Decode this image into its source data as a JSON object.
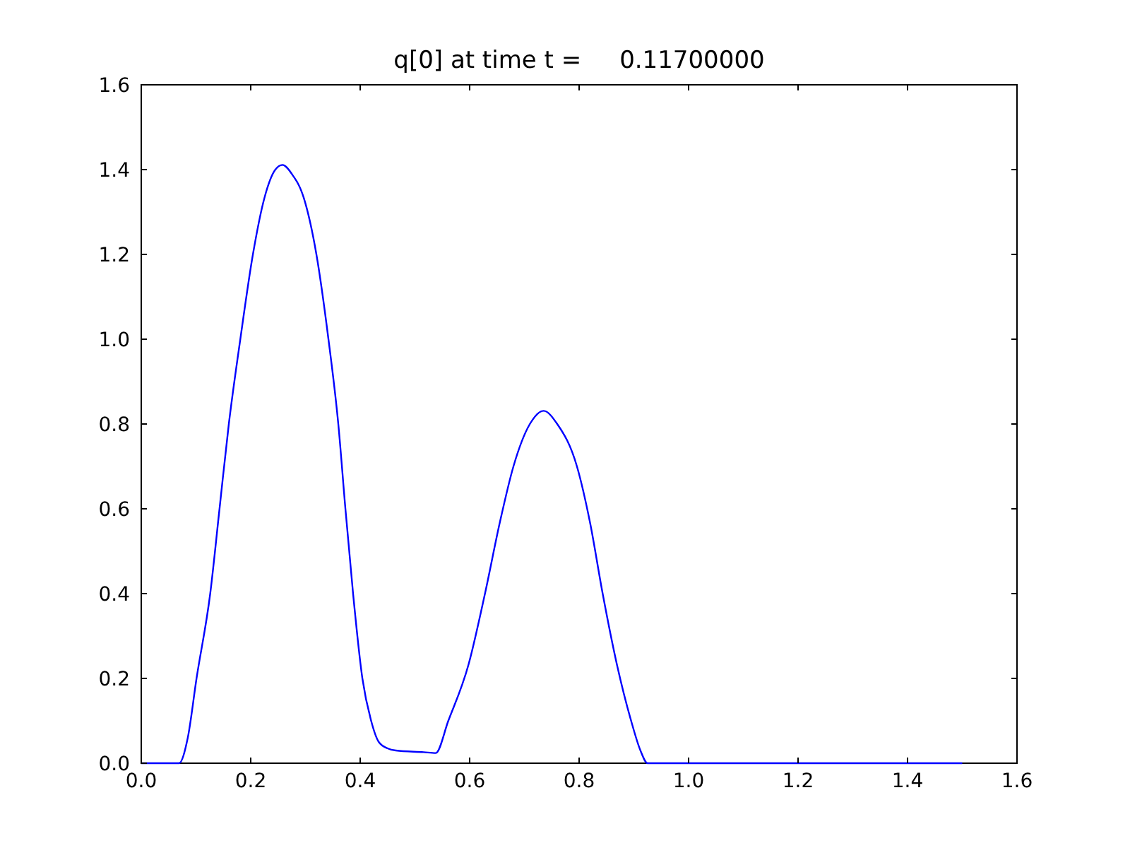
{
  "chart_data": {
    "type": "line",
    "title": "q[0] at time t =     0.11700000",
    "series": [
      {
        "color": "#0000ff",
        "x": [
          0,
          0.069,
          0.085,
          0.101,
          0.126,
          0.143,
          0.16,
          0.181,
          0.204,
          0.225,
          0.245,
          0.258,
          0.275,
          0.297,
          0.32,
          0.342,
          0.36,
          0.373,
          0.387,
          0.404,
          0.42,
          0.434,
          0.45,
          0.465,
          0.516,
          0.538,
          0.561,
          0.598,
          0.628,
          0.655,
          0.68,
          0.71,
          0.735,
          0.76,
          0.796,
          0.82,
          0.843,
          0.869,
          0.895,
          0.912,
          0.925,
          1.5
        ],
        "values": [
          0,
          0,
          0.06,
          0.2,
          0.4,
          0.6,
          0.8,
          1.0,
          1.2,
          1.333,
          1.4,
          1.411,
          1.39,
          1.333,
          1.2,
          1.0,
          0.8,
          0.6,
          0.4,
          0.2,
          0.1,
          0.05,
          0.035,
          0.03,
          0.026,
          0.024,
          0.1,
          0.233,
          0.4,
          0.567,
          0.7,
          0.8,
          0.831,
          0.8,
          0.7,
          0.567,
          0.4,
          0.233,
          0.1,
          0.03,
          0,
          0
        ]
      }
    ],
    "xlim": [
      0,
      1.6
    ],
    "xticks": [
      {
        "value": 0,
        "label": "0.0"
      },
      0.2,
      0.4,
      0.6,
      0.8,
      {
        "value": 1,
        "label": "1.0"
      },
      1.2,
      1.4,
      1.6
    ],
    "ylim": [
      0,
      1.6
    ],
    "yticks": [
      {
        "value": 0,
        "label": "0.0"
      },
      0.2,
      0.4,
      0.6,
      0.8,
      {
        "value": 1,
        "label": "1.0"
      },
      1.2,
      1.4,
      1.6
    ]
  }
}
